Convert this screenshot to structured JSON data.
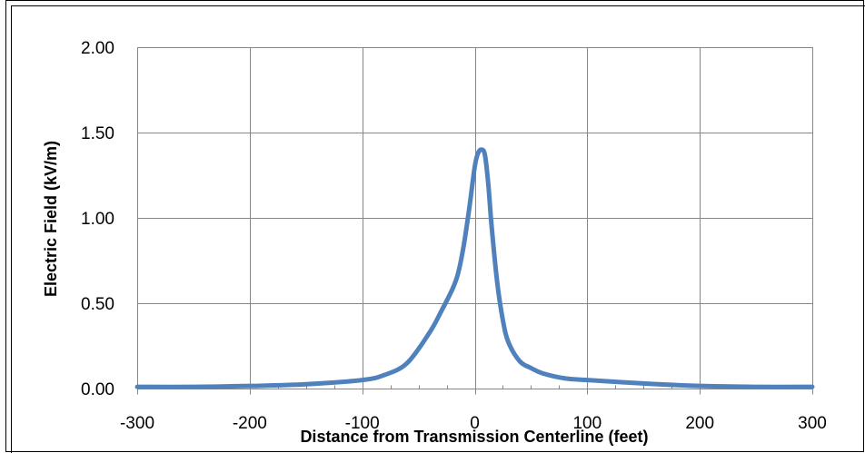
{
  "chart_data": {
    "type": "line",
    "title": "",
    "xlabel": "Distance from Transmission Centerline (feet)",
    "ylabel": "Electric Field (kV/m)",
    "xlim": [
      -300,
      300
    ],
    "ylim": [
      0,
      2
    ],
    "x_ticks": [
      -300,
      -200,
      -100,
      0,
      100,
      200,
      300
    ],
    "y_ticks": [
      "0.00",
      "0.50",
      "1.00",
      "1.50",
      "2.00"
    ],
    "grid": true,
    "legend": "none",
    "series_color": "#4F81BD",
    "series": [
      {
        "x": [
          -300,
          -250,
          -200,
          -150,
          -100,
          -80,
          -60,
          -40,
          -30,
          -20,
          -15,
          -10,
          -5,
          0,
          3,
          6,
          9,
          12,
          15,
          20,
          25,
          30,
          40,
          50,
          60,
          80,
          100,
          150,
          200,
          250,
          300
        ],
        "values": [
          0.01,
          0.01,
          0.015,
          0.025,
          0.05,
          0.08,
          0.15,
          0.33,
          0.45,
          0.58,
          0.67,
          0.83,
          1.05,
          1.3,
          1.38,
          1.4,
          1.37,
          1.2,
          0.95,
          0.62,
          0.4,
          0.27,
          0.16,
          0.12,
          0.09,
          0.06,
          0.05,
          0.03,
          0.015,
          0.01,
          0.01
        ]
      }
    ]
  }
}
